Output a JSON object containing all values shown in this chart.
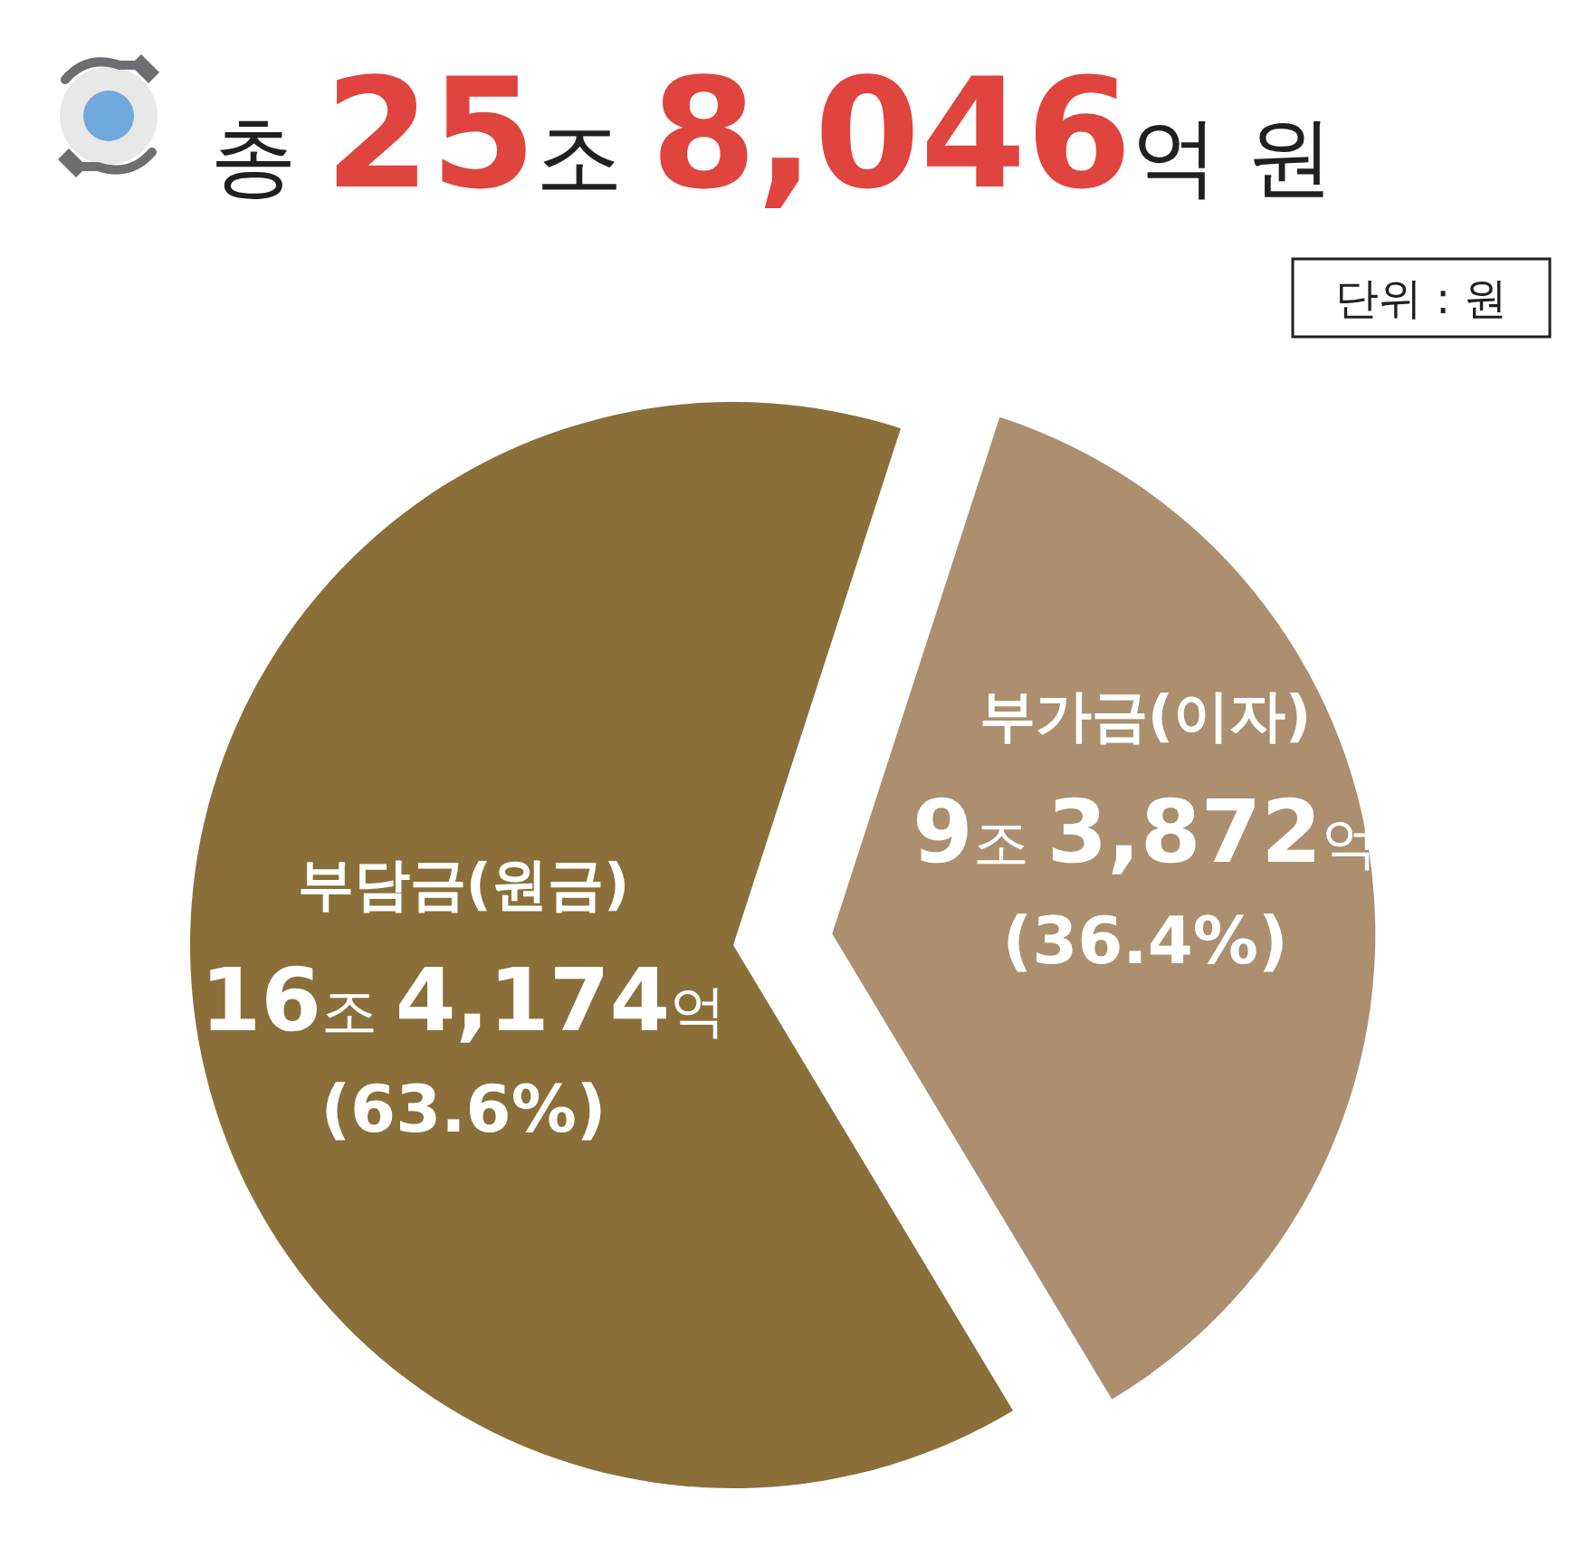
{
  "chart_data": {
    "type": "pie",
    "title": "총 25조 8,046억 원",
    "categories": [
      "부담금(원금)",
      "부가금(이자)"
    ],
    "values": [
      63.6,
      36.4
    ],
    "colors": [
      "#8a6f3a",
      "#ab8f6f"
    ],
    "value_labels": [
      "(63.6%)",
      "(36.4%)"
    ],
    "annotations": [
      {
        "text": "16조 4,174억",
        "x": "부담금(원금)"
      },
      {
        "text": "9조 3,872억",
        "x": "부가금(이자)"
      },
      "단위 : 원"
    ]
  }
}
